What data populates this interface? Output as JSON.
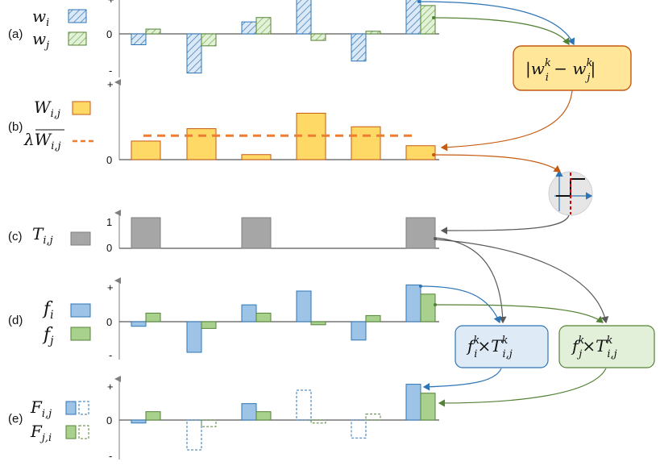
{
  "colors": {
    "blue_fill": "#9dc3e6",
    "blue_edge": "#2e75b6",
    "green_fill": "#a9d18e",
    "green_edge": "#548235",
    "orange_fill": "#ffd966",
    "orange_edge": "#c55a11",
    "gray_fill": "#a6a6a6",
    "gray_edge": "#7f7f7f",
    "dash_orange": "#ed7d31",
    "box_orange": "#ffe699",
    "box_blue": "#deebf7",
    "box_green": "#e2f0d9",
    "threshold_red": "#e00000"
  },
  "panels": {
    "a": {
      "tag": "(a)",
      "legend": [
        {
          "sym": "w",
          "sub": "i"
        },
        {
          "sym": "w",
          "sub": "j"
        }
      ],
      "ticks": {
        "plus": "+",
        "zero": "0",
        "minus": "-"
      },
      "series": [
        {
          "name": "w_i",
          "values": [
            -0.5,
            -1.8,
            0.55,
            1.6,
            -1.25,
            1.7
          ],
          "style": "hatch-blue"
        },
        {
          "name": "w_j",
          "values": [
            0.22,
            -0.55,
            0.75,
            -0.3,
            0.12,
            1.3
          ],
          "style": "hatch-green"
        }
      ]
    },
    "b": {
      "tag": "(b)",
      "legend": [
        {
          "sym": "W",
          "sub": "i,j"
        },
        {
          "sym": "λW",
          "sub": "i,j",
          "overline": true
        }
      ],
      "ticks": {
        "plus": "+",
        "zero": "0"
      },
      "values": [
        0.48,
        0.8,
        0.13,
        1.2,
        0.85,
        0.36
      ],
      "threshold": 0.62
    },
    "c": {
      "tag": "(c)",
      "legend": [
        {
          "sym": "T",
          "sub": "i,j"
        }
      ],
      "ticks": {
        "one": "1",
        "zero": "0"
      },
      "values": [
        1,
        0,
        1,
        0,
        0,
        1
      ]
    },
    "d": {
      "tag": "(d)",
      "legend": [
        {
          "sym": "f",
          "sub": "i"
        },
        {
          "sym": "f",
          "sub": "j"
        }
      ],
      "ticks": {
        "plus": "+",
        "zero": "0",
        "minus": "-"
      },
      "series": [
        {
          "name": "f_i",
          "values": [
            -0.15,
            -1.0,
            0.55,
            1.0,
            -0.6,
            1.2
          ],
          "style": "solid-blue"
        },
        {
          "name": "f_j",
          "values": [
            0.28,
            -0.22,
            0.28,
            -0.1,
            0.2,
            0.9
          ],
          "style": "solid-green"
        }
      ]
    },
    "e": {
      "tag": "(e)",
      "legend": [
        {
          "sym": "F",
          "sub": "i,j"
        },
        {
          "sym": "F",
          "sub": "j,i"
        }
      ],
      "ticks": {
        "plus": "+",
        "zero": "0",
        "minus": "-"
      },
      "series": [
        {
          "name": "F_i,j",
          "values": [
            -0.1,
            -1.0,
            0.55,
            1.0,
            -0.6,
            1.2
          ],
          "masked": [
            false,
            true,
            false,
            true,
            true,
            false
          ],
          "style": "blue"
        },
        {
          "name": "F_j,i",
          "values": [
            0.28,
            -0.22,
            0.28,
            -0.1,
            0.2,
            0.9
          ],
          "masked": [
            false,
            true,
            false,
            true,
            true,
            false
          ],
          "style": "green"
        }
      ]
    }
  },
  "boxes": {
    "diff": {
      "text": "|w",
      "sup": "k",
      "sub": "i",
      "op": " − w",
      "sup2": "k",
      "sub2": "j",
      "end": "|"
    },
    "fi": {
      "f": "f",
      "sub": "i",
      "sup": "k",
      "times": "×T",
      "tsup": "k",
      "tsub": "i,j"
    },
    "fj": {
      "f": "f",
      "sub": "j",
      "sup": "k",
      "times": "×T",
      "tsup": "k",
      "tsub": "i,j"
    }
  }
}
